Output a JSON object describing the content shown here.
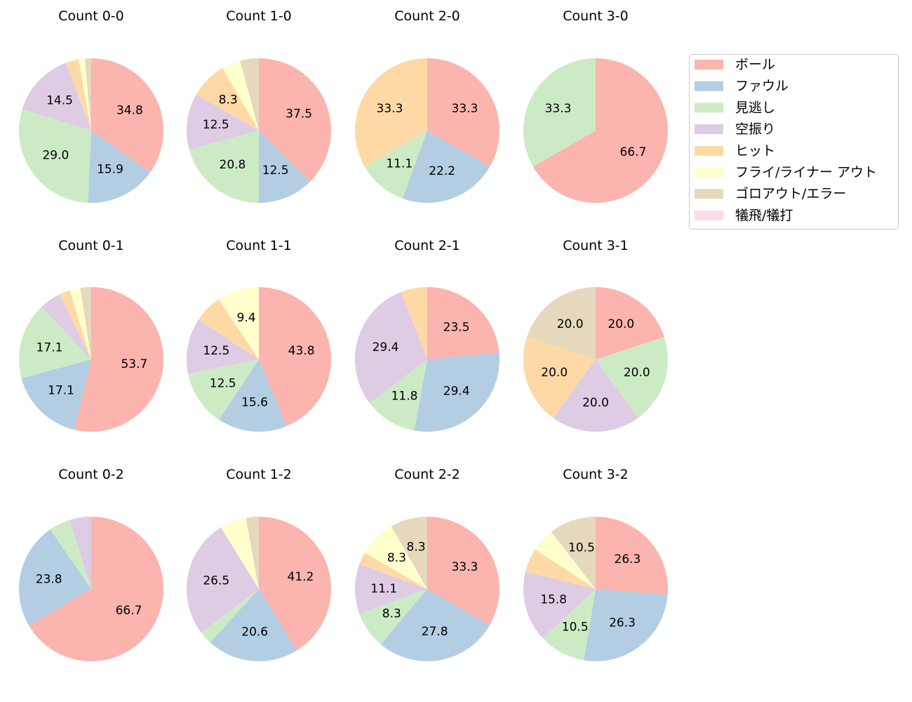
{
  "chart_data": {
    "type": "pie",
    "start_angle": 90,
    "direction": "clockwise",
    "legend_placement": "upper-right",
    "categories": [
      "ボール",
      "ファウル",
      "見逃し",
      "空振り",
      "ヒット",
      "フライ/ライナー アウト",
      "ゴロアウト/エラー",
      "犠飛/犠打"
    ],
    "colors": [
      "#fbb4ae",
      "#b3cde3",
      "#ccebc5",
      "#decbe4",
      "#fed9a6",
      "#ffffcc",
      "#e5d8bd",
      "#fddaec"
    ],
    "charts": [
      {
        "title": "Count 0-0",
        "values": [
          34.8,
          15.9,
          29.0,
          14.5,
          2.9,
          1.4,
          1.4,
          0
        ]
      },
      {
        "title": "Count 1-0",
        "values": [
          37.5,
          12.5,
          20.8,
          12.5,
          8.3,
          4.2,
          4.2,
          0
        ]
      },
      {
        "title": "Count 2-0",
        "values": [
          33.3,
          22.2,
          11.1,
          0,
          33.3,
          0,
          0,
          0
        ]
      },
      {
        "title": "Count 3-0",
        "values": [
          66.7,
          0,
          33.3,
          0,
          0,
          0,
          0,
          0
        ]
      },
      {
        "title": "Count 0-1",
        "values": [
          53.7,
          17.1,
          17.1,
          4.9,
          2.4,
          2.4,
          2.4,
          0
        ]
      },
      {
        "title": "Count 1-1",
        "values": [
          43.8,
          15.6,
          12.5,
          12.5,
          6.3,
          9.4,
          0,
          0
        ]
      },
      {
        "title": "Count 2-1",
        "values": [
          23.5,
          29.4,
          11.8,
          29.4,
          5.9,
          0,
          0,
          0
        ]
      },
      {
        "title": "Count 3-1",
        "values": [
          20.0,
          0,
          20.0,
          20.0,
          20.0,
          0,
          20.0,
          0
        ]
      },
      {
        "title": "Count 0-2",
        "values": [
          66.7,
          23.8,
          4.8,
          4.8,
          0,
          0,
          0,
          0
        ]
      },
      {
        "title": "Count 1-2",
        "values": [
          41.2,
          20.6,
          2.9,
          26.5,
          0,
          5.9,
          2.9,
          0
        ]
      },
      {
        "title": "Count 2-2",
        "values": [
          33.3,
          27.8,
          8.3,
          11.1,
          2.8,
          8.3,
          8.3,
          0
        ]
      },
      {
        "title": "Count 3-2",
        "values": [
          26.3,
          26.3,
          10.5,
          15.8,
          5.3,
          5.3,
          10.5,
          0
        ]
      }
    ]
  }
}
